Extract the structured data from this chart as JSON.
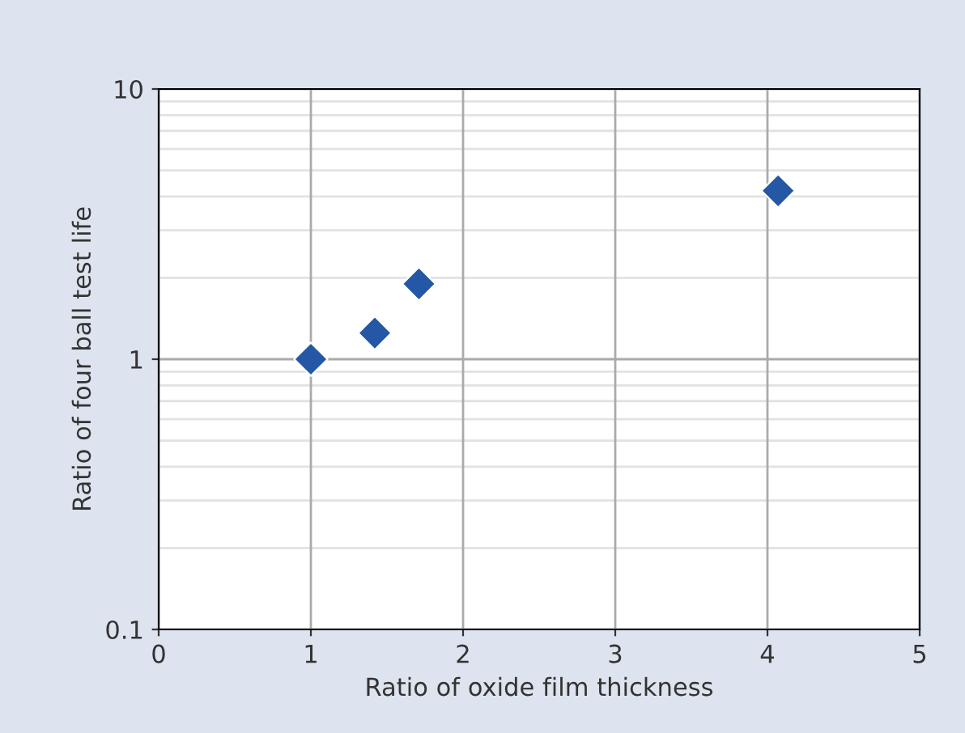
{
  "chart_data": {
    "type": "scatter",
    "xlabel": "Ratio of oxide film thickness",
    "ylabel": "Ratio of four ball test life",
    "x": [
      1,
      1.42,
      1.71,
      4.07
    ],
    "values": [
      1,
      1.25,
      1.9,
      4.2
    ],
    "color": "#2457a5",
    "marker": "diamond",
    "xlim": [
      0,
      5
    ],
    "xticks": [
      0,
      1,
      2,
      3,
      4,
      5
    ],
    "ylim": [
      0.1,
      10
    ],
    "yticks": [
      0.1,
      1,
      10
    ],
    "log": "y",
    "grid": true
  }
}
